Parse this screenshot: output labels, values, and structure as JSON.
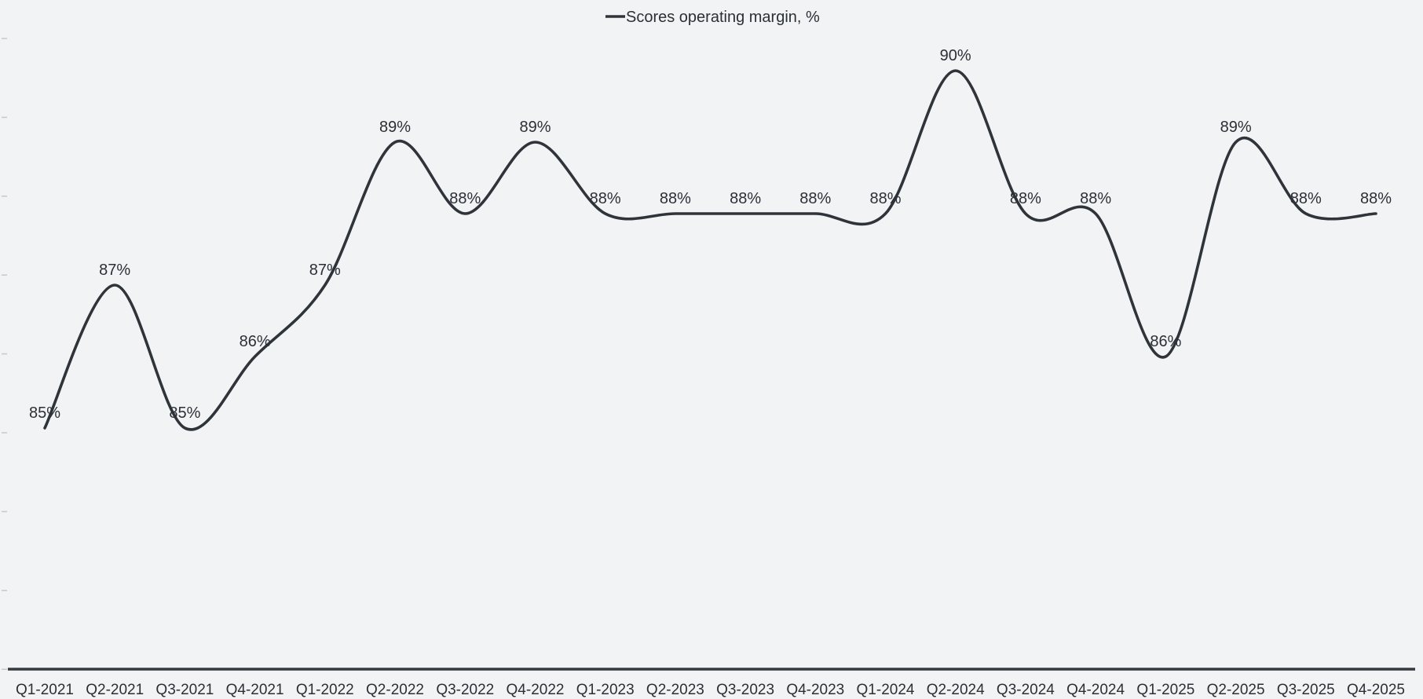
{
  "chart_data": {
    "type": "line",
    "legend": "Scores operating margin, %",
    "legend_position": "top-center",
    "categories": [
      "Q1-2021",
      "Q2-2021",
      "Q3-2021",
      "Q4-2021",
      "Q1-2022",
      "Q2-2022",
      "Q3-2022",
      "Q4-2022",
      "Q1-2023",
      "Q2-2023",
      "Q3-2023",
      "Q4-2023",
      "Q1-2024",
      "Q2-2024",
      "Q3-2024",
      "Q4-2024",
      "Q1-2025",
      "Q2-2025",
      "Q3-2025",
      "Q4-2025"
    ],
    "values": [
      85,
      87,
      85,
      86,
      87,
      89,
      88,
      89,
      88,
      88,
      88,
      88,
      88,
      90,
      88,
      88,
      86,
      89,
      88,
      88
    ],
    "point_labels": [
      "85%",
      "87%",
      "85%",
      "86%",
      "87%",
      "89%",
      "88%",
      "89%",
      "88%",
      "88%",
      "88%",
      "88%",
      "88%",
      "90%",
      "88%",
      "88%",
      "86%",
      "89%",
      "88%",
      "88%"
    ],
    "xlabel": "",
    "ylabel": "",
    "ylim": [
      81,
      91
    ],
    "grid": false,
    "markers": false,
    "y_axis_tick_count": 9,
    "colors": {
      "line": "#2e343a",
      "axis": "#343a40",
      "text": "#2b3036",
      "faint_tick": "#c7cbd0",
      "background": "#f2f3f5"
    }
  }
}
